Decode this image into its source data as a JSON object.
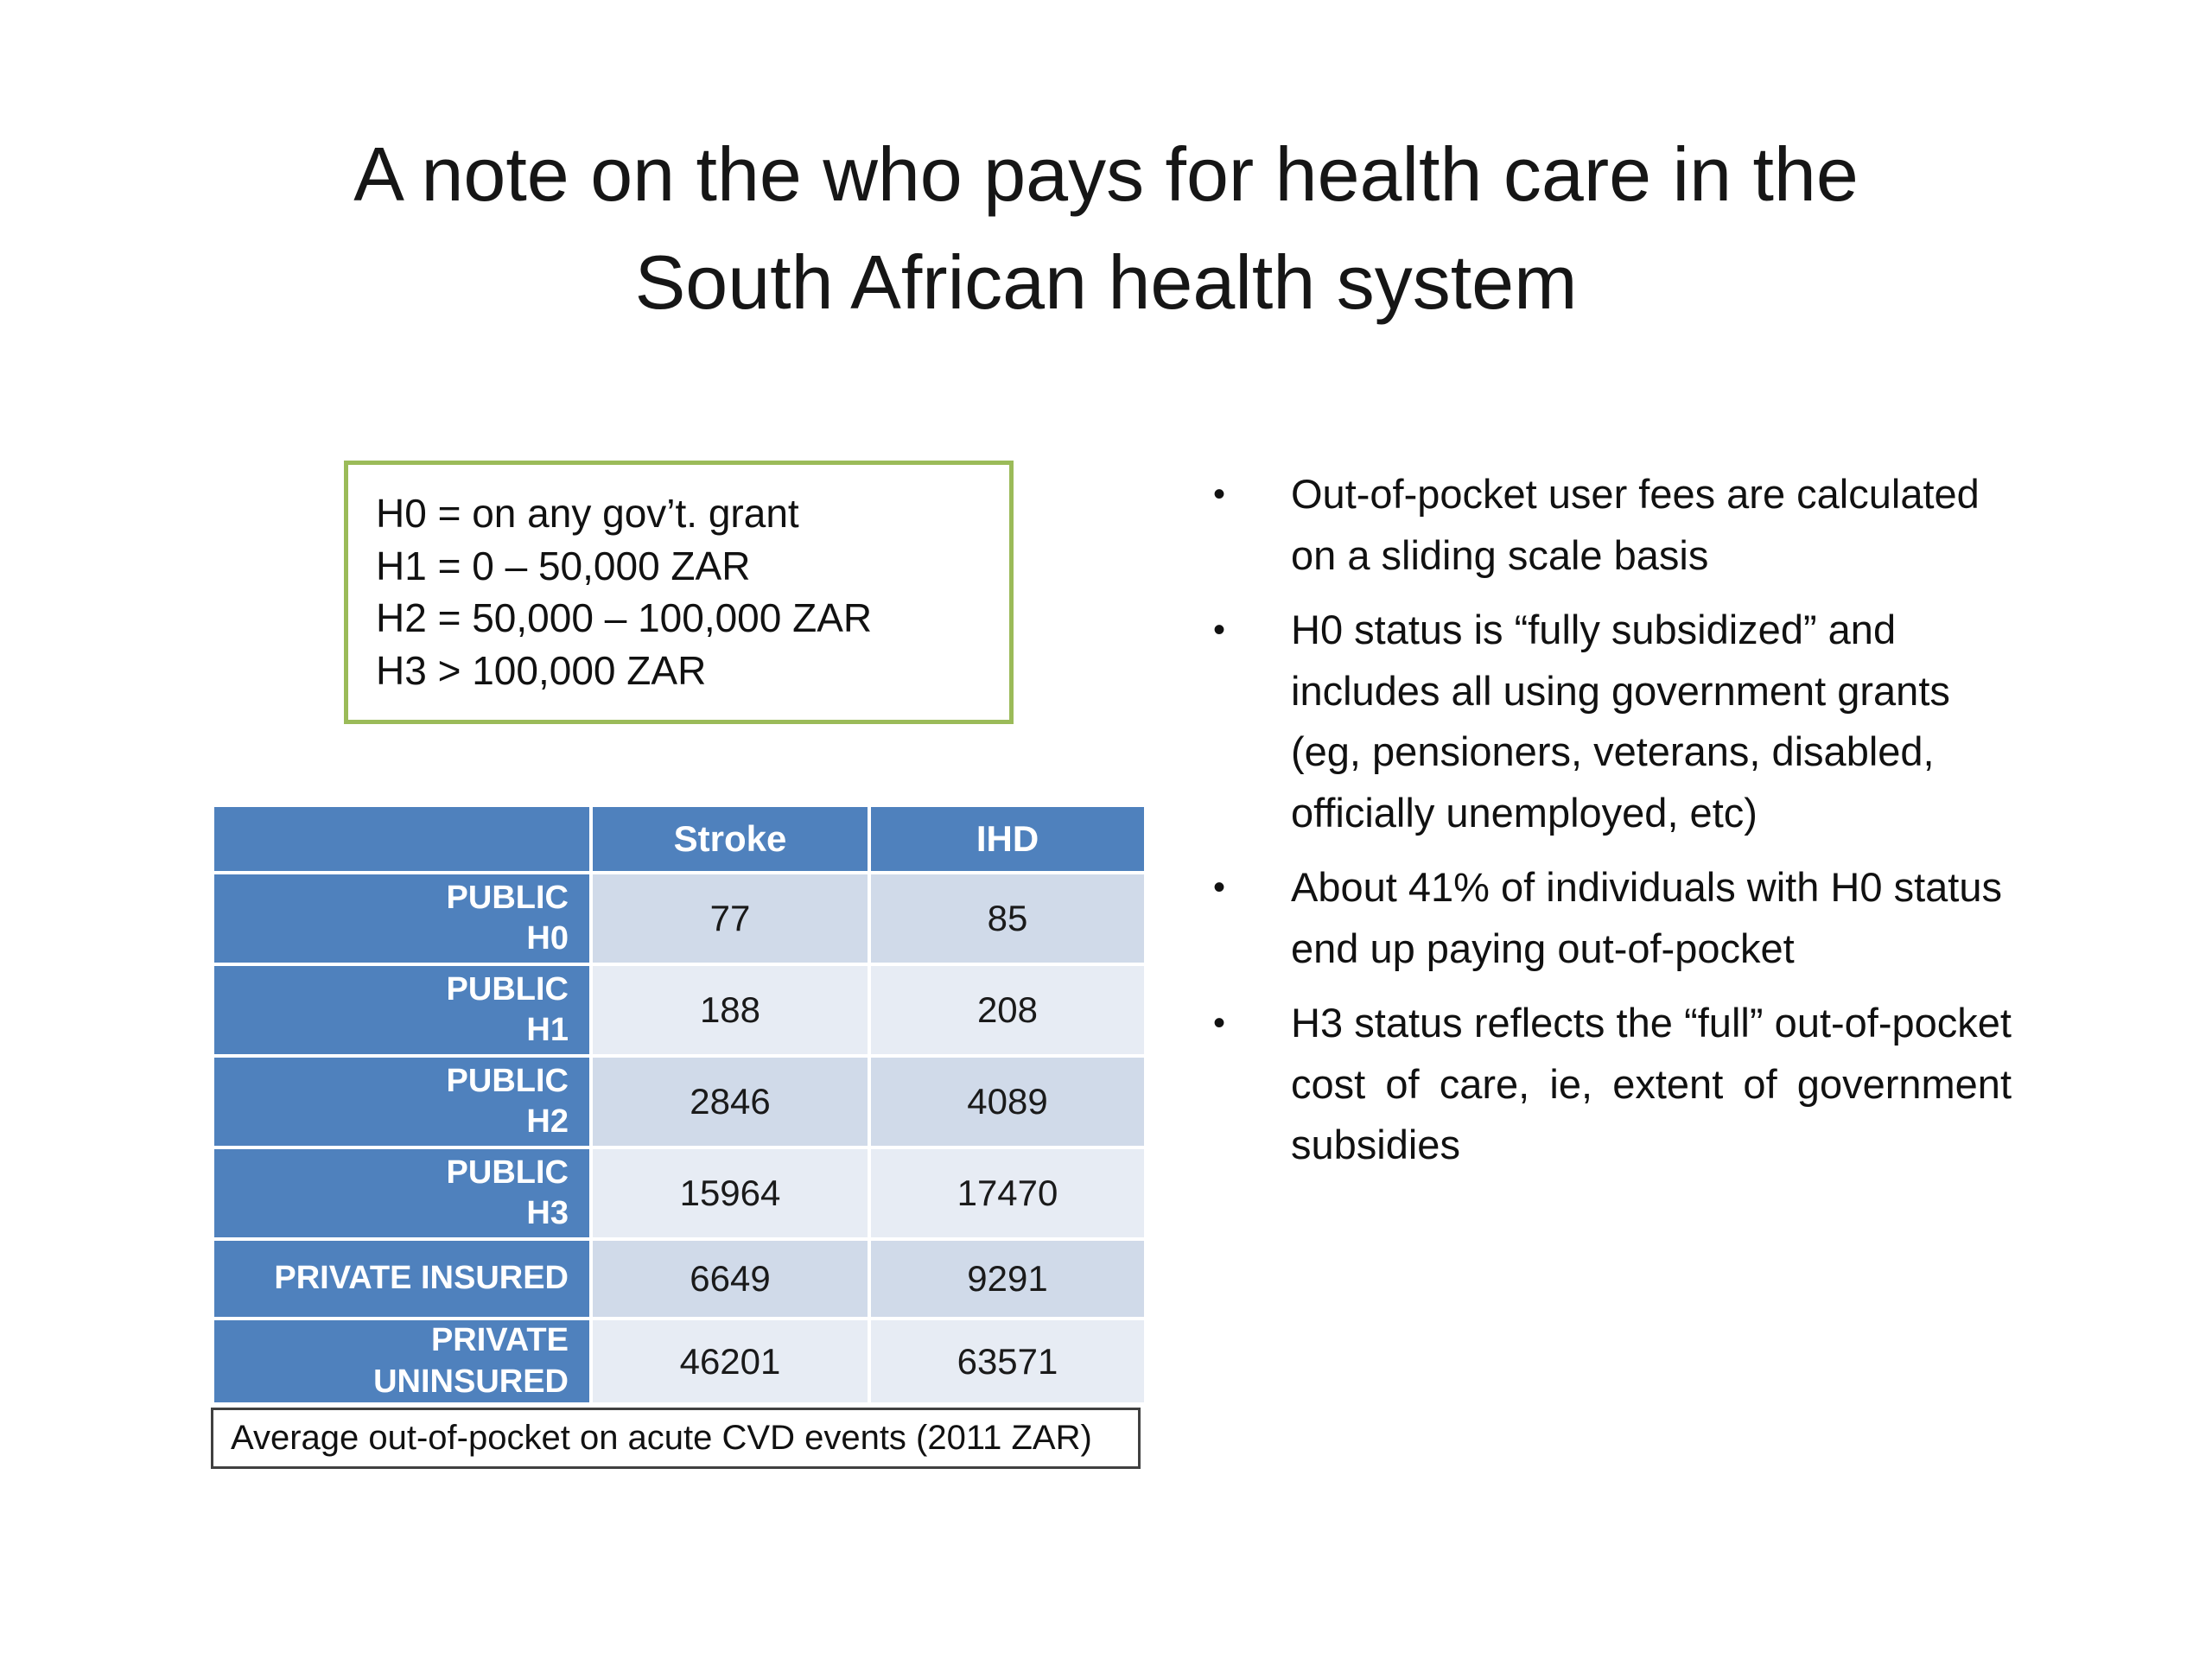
{
  "title": {
    "line1": "A note on the who pays for health care in the",
    "line2": "South African health system"
  },
  "legend": {
    "lines": [
      "H0 = on any gov’t. grant",
      "H1 = 0 – 50,000 ZAR",
      "H2 = 50,000 – 100,000 ZAR",
      "H3 > 100,000 ZAR"
    ],
    "border_color": "#9BBB59"
  },
  "table": {
    "headers": {
      "col_label": "",
      "stroke": "Stroke",
      "ihd": "IHD"
    },
    "rows": [
      {
        "label1": "PUBLIC",
        "label2": "H0",
        "stroke": "77",
        "ihd": "85"
      },
      {
        "label1": "PUBLIC",
        "label2": "H1",
        "stroke": "188",
        "ihd": "208"
      },
      {
        "label1": "PUBLIC",
        "label2": "H2",
        "stroke": "2846",
        "ihd": "4089"
      },
      {
        "label1": "PUBLIC",
        "label2": "H3",
        "stroke": "15964",
        "ihd": "17470"
      },
      {
        "label1": "PRIVATE INSURED",
        "label2": "",
        "stroke": "6649",
        "ihd": "9291"
      },
      {
        "label1": "PRIVATE UNINSURED",
        "label2": "",
        "stroke": "46201",
        "ihd": "63571"
      }
    ],
    "caption": "Average out-of-pocket on acute CVD events (2011 ZAR)",
    "header_bg": "#4F81BD",
    "band_dark": "#D0DAE9",
    "band_light": "#E7ECF4"
  },
  "bullets": [
    {
      "text": "Out-of-pocket user fees are calculated on a sliding scale basis"
    },
    {
      "text": "H0 status is “fully subsidized” and includes all using government grants (eg, pensioners, veterans, disabled, officially unemployed, etc)"
    },
    {
      "text": "About 41% of individuals with H0 status end up paying out-of-pocket"
    },
    {
      "text": "H3 status reflects the “full” out-of-pocket cost of care, ie, extent of government subsidies"
    }
  ]
}
